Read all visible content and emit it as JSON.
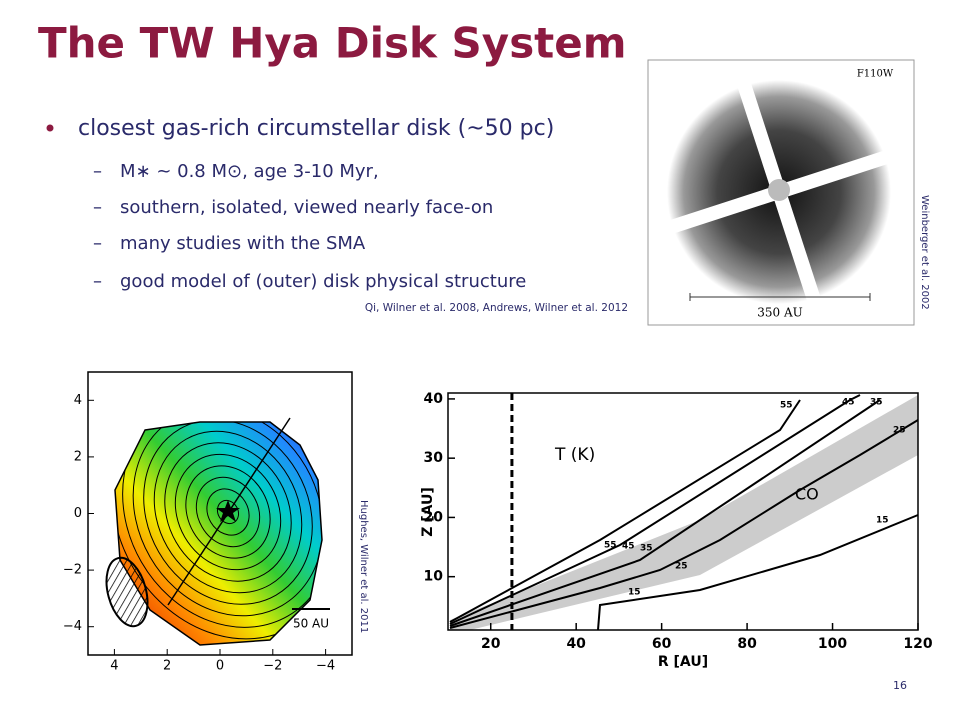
{
  "header": {
    "title": "The TW Hya Disk System"
  },
  "bullets": {
    "main": "closest gas-rich circumstellar disk (~50 pc)",
    "items": [
      "M∗ ~ 0.8 M⊙, age 3-10 Myr,",
      "southern, isolated, viewed nearly face-on",
      "many studies with the SMA",
      "good model of (outer) disk physical structure"
    ],
    "citation": "Qi, Wilner et al. 2008, Andrews, Wilner et al. 2012"
  },
  "image_hst": {
    "filter": "F110W",
    "scale": "350 AU",
    "credit": "Weinberger et al. 2002"
  },
  "image_map": {
    "yticks": [
      {
        "value": 4,
        "label": "4"
      },
      {
        "value": 2,
        "label": "2"
      },
      {
        "value": 0,
        "label": "0"
      },
      {
        "value": -2,
        "label": "−2"
      },
      {
        "value": -4,
        "label": "−4"
      }
    ],
    "xticks": [
      {
        "value": 4,
        "label": "4"
      },
      {
        "value": 2,
        "label": "2"
      },
      {
        "value": 0,
        "label": "0"
      },
      {
        "value": -2,
        "label": "−2"
      },
      {
        "value": -4,
        "label": "−4"
      }
    ],
    "lim": [
      5,
      -5
    ],
    "scale": "50 AU",
    "credit": "Hughes, Wilner et al. 2011"
  },
  "plot": {
    "xlabel": "R [AU]",
    "ylabel": "Z [AU]",
    "xlim": [
      10,
      120
    ],
    "ylim": [
      1,
      41
    ],
    "xticks": [
      20,
      40,
      60,
      80,
      100,
      120
    ],
    "yticks": [
      10,
      20,
      30,
      40
    ],
    "annotations": [
      "T (K)",
      "CO"
    ],
    "contour_labels": [
      "55",
      "45",
      "35",
      "25",
      "15",
      "55",
      "45",
      "35",
      "25",
      "15"
    ]
  },
  "page_number": "16"
}
